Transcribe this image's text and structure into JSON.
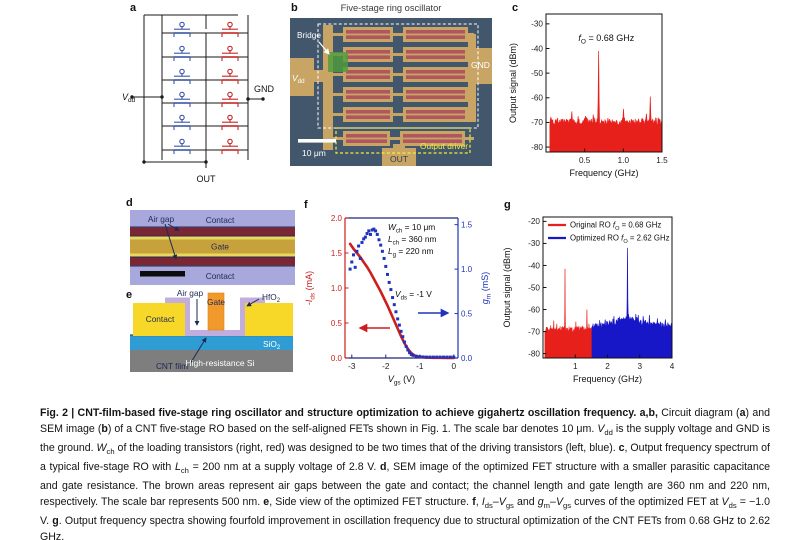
{
  "figure": {
    "id": "Fig. 2"
  },
  "colors": {
    "spectrum_red": "#e8201c",
    "spectrum_blue": "#1717c8",
    "axis_red": "#cc1f1f",
    "axis_blue": "#2233bb",
    "frame_navy": "#23237d",
    "circuit_blue": "#3b55a5",
    "circuit_red": "#c42727",
    "sem_background": "#42566c",
    "sem_gold": "#c8a564",
    "sem_channel_red": "#b0565f",
    "sem_bridge_green": "#4f9c3c",
    "sem_annotation_yellow": "#f3ef3a",
    "d_background_lavender": "#a8a8dc",
    "d_airgap_maroon": "#7c2633",
    "d_gate_gold": "#c7a13b",
    "e_contact_yellow": "#f7d829",
    "e_gate_orange": "#f1992d",
    "e_hfo2_lavender": "#c2aede",
    "e_sio2_blue": "#2f9cd3",
    "e_substrate_gray": "#7e7e7e",
    "diagram_navy_text": "#1c2a52"
  },
  "panels": {
    "a": {
      "label": "a",
      "vdd": "V",
      "vdd_sub": "dd",
      "gnd": "GND",
      "out": "OUT"
    },
    "b": {
      "label": "b",
      "title": "Five-stage ring oscillator",
      "bridge": "Bridge",
      "vdd": "V",
      "vdd_sub": "dd",
      "gnd": "GND",
      "out": "OUT",
      "driver": "Output driver",
      "scale_bar": "10 μm"
    },
    "c": {
      "label": "c"
    },
    "d": {
      "label": "d",
      "air_gap": "Air gap",
      "contact_top": "Contact",
      "gate": "Gate",
      "contact_bottom": "Contact"
    },
    "e": {
      "label": "e",
      "air_gap": "Air gap",
      "gate": "Gate",
      "hfo2": "HfO",
      "hfo2_sub": "2",
      "contact": "Contact",
      "cnt_film": "CNT film",
      "sio2": "SiO",
      "sio2_sub": "2",
      "substrate": "High-resistance Si"
    },
    "f": {
      "label": "f"
    },
    "g": {
      "label": "g"
    }
  },
  "chart_data": [
    {
      "id": "c",
      "type": "area",
      "title": "",
      "xlabel": "Frequency (GHz)",
      "ylabel": "Output signal (dBm)",
      "xlim": [
        0,
        1.5
      ],
      "ylim": [
        -82,
        -26
      ],
      "xticks": [
        "0.5",
        "1.0",
        "1.5"
      ],
      "xtick_vals": [
        0.5,
        1.0,
        1.5
      ],
      "yticks": [
        -30,
        -40,
        -50,
        -60,
        -70,
        -80
      ],
      "grid": false,
      "annotation": "f~O~ = 0.68 GHz",
      "series": [
        {
          "name": "RO spectrum",
          "color_key": "spectrum_red",
          "seed": 7,
          "x_start": 0.05,
          "x_end": 1.5,
          "noise_floor_dbm": -70,
          "noise_amp_db": 2.1,
          "peaks": [
            {
              "f": 0.335,
              "a": -65.5
            },
            {
              "f": 0.68,
              "a": -41.0
            },
            {
              "f": 1.0,
              "a": -64.5
            },
            {
              "f": 1.3,
              "a": -66.5
            },
            {
              "f": 1.35,
              "a": -59.5
            }
          ]
        }
      ]
    },
    {
      "id": "f",
      "type": "line+scatter",
      "xlabel": "V~gs~ (V)",
      "ylabel_left": "-I~ds~ (mA)",
      "ylabel_right": "g~m~ (mS)",
      "xlim": [
        -3.2,
        0.125
      ],
      "ylim_left": [
        0,
        2.0
      ],
      "ylim_right": [
        0,
        1.575
      ],
      "xticks": [
        "-3",
        "-2",
        "-1",
        "0"
      ],
      "xtick_vals": [
        -3,
        -2,
        -1,
        0
      ],
      "yticks_left": [
        "0.0",
        "0.5",
        "1.0",
        "1.5",
        "2.0"
      ],
      "ytick_vals_left": [
        0,
        0.5,
        1.0,
        1.5,
        2.0
      ],
      "yticks_right": [
        "0.0",
        "0.5",
        "1.0",
        "1.5"
      ],
      "ytick_vals_right": [
        0,
        0.5,
        1.0,
        1.5
      ],
      "grid": false,
      "annotations": [
        "W~ch~ = 10 μm",
        "L~ch~ = 360 nm",
        "L~g~ = 220 nm",
        "V~ds~ = -1 V"
      ],
      "ids_mA": [
        [
          -3.05,
          1.63
        ],
        [
          -2.95,
          1.56
        ],
        [
          -2.85,
          1.5
        ],
        [
          -2.75,
          1.44
        ],
        [
          -2.65,
          1.37
        ],
        [
          -2.55,
          1.3
        ],
        [
          -2.45,
          1.22
        ],
        [
          -2.35,
          1.13
        ],
        [
          -2.25,
          1.04
        ],
        [
          -2.15,
          0.95
        ],
        [
          -2.05,
          0.85
        ],
        [
          -1.95,
          0.75
        ],
        [
          -1.85,
          0.64
        ],
        [
          -1.75,
          0.53
        ],
        [
          -1.65,
          0.42
        ],
        [
          -1.55,
          0.31
        ],
        [
          -1.45,
          0.21
        ],
        [
          -1.35,
          0.13
        ],
        [
          -1.25,
          0.07
        ],
        [
          -1.15,
          0.035
        ],
        [
          -1.05,
          0.02
        ],
        [
          -0.95,
          0.012
        ],
        [
          -0.8,
          0.006
        ],
        [
          -0.6,
          0.003
        ],
        [
          -0.4,
          0.002
        ],
        [
          -0.2,
          0.001
        ],
        [
          0,
          0.001
        ]
      ],
      "gm_mS": [
        [
          -3.05,
          1.0
        ],
        [
          -3.0,
          1.08
        ],
        [
          -2.95,
          1.16
        ],
        [
          -2.9,
          1.02
        ],
        [
          -2.85,
          1.2
        ],
        [
          -2.8,
          1.26
        ],
        [
          -2.75,
          1.12
        ],
        [
          -2.7,
          1.3
        ],
        [
          -2.65,
          1.34
        ],
        [
          -2.6,
          1.36
        ],
        [
          -2.55,
          1.4
        ],
        [
          -2.5,
          1.43
        ],
        [
          -2.45,
          1.39
        ],
        [
          -2.4,
          1.44
        ],
        [
          -2.35,
          1.45
        ],
        [
          -2.3,
          1.43
        ],
        [
          -2.25,
          1.39
        ],
        [
          -2.2,
          1.33
        ],
        [
          -2.15,
          1.27
        ],
        [
          -2.1,
          1.2
        ],
        [
          -2.05,
          1.12
        ],
        [
          -2.0,
          1.03
        ],
        [
          -1.95,
          0.94
        ],
        [
          -1.9,
          0.85
        ],
        [
          -1.85,
          0.77
        ],
        [
          -1.8,
          0.68
        ],
        [
          -1.75,
          0.6
        ],
        [
          -1.7,
          0.52
        ],
        [
          -1.65,
          0.44
        ],
        [
          -1.6,
          0.37
        ],
        [
          -1.55,
          0.3
        ],
        [
          -1.5,
          0.24
        ],
        [
          -1.45,
          0.18
        ],
        [
          -1.4,
          0.13
        ],
        [
          -1.35,
          0.09
        ],
        [
          -1.3,
          0.06
        ],
        [
          -1.25,
          0.04
        ],
        [
          -1.2,
          0.03
        ],
        [
          -1.1,
          0.02
        ],
        [
          -1.0,
          0.015
        ],
        [
          -0.9,
          0.012
        ],
        [
          -0.8,
          0.01
        ],
        [
          -0.7,
          0.01
        ],
        [
          -0.6,
          0.01
        ],
        [
          -0.5,
          0.01
        ],
        [
          -0.4,
          0.01
        ],
        [
          -0.3,
          0.01
        ],
        [
          -0.2,
          0.01
        ],
        [
          -0.1,
          0.01
        ],
        [
          0,
          0.01
        ]
      ]
    },
    {
      "id": "g",
      "type": "area",
      "xlabel": "Frequency (GHz)",
      "ylabel": "Output signal (dBm)",
      "xlim": [
        0,
        4
      ],
      "ylim": [
        -82,
        -18
      ],
      "xticks": [
        "1",
        "2",
        "3",
        "4"
      ],
      "xtick_vals": [
        1,
        2,
        3,
        4
      ],
      "yticks": [
        -20,
        -30,
        -40,
        -50,
        -60,
        -70,
        -80
      ],
      "grid": false,
      "legend_position": "top-left",
      "legend": [
        {
          "label": "Original RO f~O~ = 0.68 GHz",
          "color_key": "spectrum_red"
        },
        {
          "label": "Optimized RO f~O~ = 2.62 GHz",
          "color_key": "spectrum_blue"
        }
      ],
      "series": [
        {
          "name": "Original RO",
          "color_key": "spectrum_red",
          "seed": 11,
          "x_start": 0.06,
          "x_end": 1.52,
          "noise_floor_dbm": -69.5,
          "noise_amp_db": 2.0,
          "peaks": [
            {
              "f": 0.33,
              "a": -65.0
            },
            {
              "f": 0.68,
              "a": -41.5
            },
            {
              "f": 1.02,
              "a": -65.5
            },
            {
              "f": 1.36,
              "a": -60.0
            }
          ]
        },
        {
          "name": "Optimized RO",
          "color_key": "spectrum_blue",
          "seed": 23,
          "x_start": 1.52,
          "x_end": 4.0,
          "noise_floor_dbm": -67.5,
          "noise_amp_db": 2.0,
          "hump": {
            "f": 2.62,
            "a": -64.5,
            "w": 0.5
          },
          "peaks": [
            {
              "f": 2.2,
              "a": -63.0
            },
            {
              "f": 2.35,
              "a": -64.0
            },
            {
              "f": 2.62,
              "a": -32.0
            },
            {
              "f": 2.8,
              "a": -64.0
            },
            {
              "f": 2.95,
              "a": -62.5
            },
            {
              "f": 3.1,
              "a": -63.0
            },
            {
              "f": 3.3,
              "a": -62.5
            },
            {
              "f": 3.55,
              "a": -64.0
            },
            {
              "f": 3.8,
              "a": -64.5
            }
          ]
        }
      ]
    }
  ],
  "caption": {
    "segments": [
      {
        "t": "Fig. 2 | CNT-film-based five-stage ring oscillator and structure optimization to achieve gigahertz oscillation frequency. ",
        "b": 1
      },
      {
        "t": "a",
        "b": 1
      },
      {
        "t": ",",
        "b": 1
      },
      {
        "t": "b",
        "b": 1
      },
      {
        "t": ", ",
        "b": 1
      },
      {
        "t": "Circuit diagram ("
      },
      {
        "t": "a",
        "b": 1
      },
      {
        "t": ") and SEM image ("
      },
      {
        "t": "b",
        "b": 1
      },
      {
        "t": ") of a CNT five-stage RO based on the self-aligned FETs shown in Fig. 1. The scale bar denotes 10 μm. "
      },
      {
        "t": "V",
        "i": 1
      },
      {
        "t": "dd",
        "s": 1
      },
      {
        "t": " is the supply voltage and GND is the ground. "
      },
      {
        "t": "W",
        "i": 1
      },
      {
        "t": "ch",
        "s": 1
      },
      {
        "t": " of the loading transistors (right, red) was designed to be two times that of the driving transistors (left, blue). "
      },
      {
        "t": "c",
        "b": 1
      },
      {
        "t": ", Output frequency spectrum of a typical five-stage RO with "
      },
      {
        "t": "L",
        "i": 1
      },
      {
        "t": "ch",
        "s": 1
      },
      {
        "t": " = 200 nm at a supply voltage of 2.8 V. "
      },
      {
        "t": "d",
        "b": 1
      },
      {
        "t": ", SEM image of the optimized FET structure with a smaller parasitic capacitance and gate resistance. The brown areas represent air gaps between the gate and contact; the channel length and gate length are 360 nm and 220 nm, respectively. The scale bar represents 500 nm. "
      },
      {
        "t": "e",
        "b": 1
      },
      {
        "t": ", Side view of the optimized FET structure. "
      },
      {
        "t": "f",
        "b": 1
      },
      {
        "t": ", "
      },
      {
        "t": "I",
        "i": 1
      },
      {
        "t": "ds",
        "s": 1
      },
      {
        "t": "–"
      },
      {
        "t": "V",
        "i": 1
      },
      {
        "t": "gs",
        "s": 1
      },
      {
        "t": " and "
      },
      {
        "t": "g",
        "i": 1
      },
      {
        "t": "m",
        "s": 1
      },
      {
        "t": "–"
      },
      {
        "t": "V",
        "i": 1
      },
      {
        "t": "gs",
        "s": 1
      },
      {
        "t": " curves of the optimized FET at "
      },
      {
        "t": "V",
        "i": 1
      },
      {
        "t": "ds",
        "s": 1
      },
      {
        "t": " = −1.0 V. "
      },
      {
        "t": "g",
        "b": 1
      },
      {
        "t": ". Output frequency spectra showing fourfold improvement in oscillation frequency due to structural optimization of the CNT FETs from 0.68 GHz to 2.62 GHz."
      }
    ]
  }
}
